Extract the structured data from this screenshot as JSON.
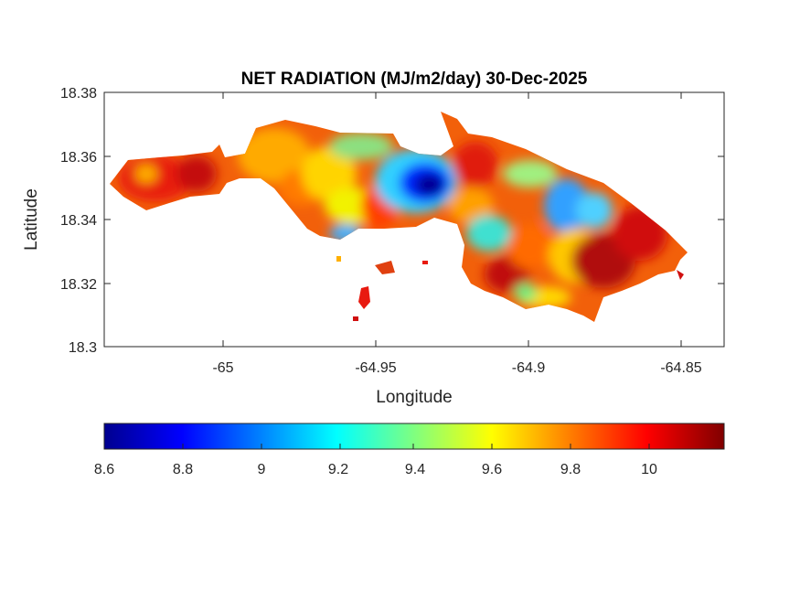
{
  "figure": {
    "title": "NET RADIATION (MJ/m2/day) 30-Dec-2025",
    "xlabel": "Longitude",
    "ylabel": "Latitude"
  },
  "map": {
    "x_ticks": [
      "-65",
      "-64.95",
      "-64.9",
      "-64.85"
    ],
    "y_ticks": [
      "18.38",
      "18.36",
      "18.34",
      "18.32",
      "18.3"
    ],
    "xlim": [
      -65.038,
      -64.837
    ],
    "ylim": [
      18.3,
      18.38
    ]
  },
  "colorbar": {
    "colormap": "jet",
    "range": [
      8.6,
      10.18
    ],
    "ticks": [
      "8.6",
      "8.8",
      "9",
      "9.2",
      "9.4",
      "9.6",
      "9.8",
      "10"
    ],
    "orientation": "horizontal"
  },
  "field_features": {
    "low_center_value": 8.7,
    "typical_value": 9.9,
    "high_value": 10.15
  }
}
